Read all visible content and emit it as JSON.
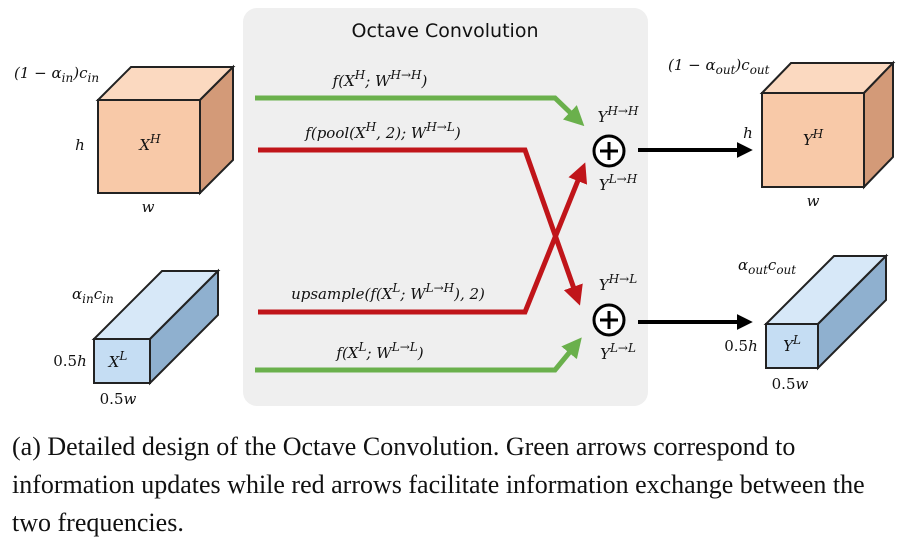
{
  "diagram": {
    "title": "Octave Convolution",
    "colors": {
      "green_arrow": "#6ab04c",
      "red_arrow": "#c0151a",
      "black_arrow": "#000000",
      "panel_bg": "#efefef",
      "high_freq_front": "#f8c9a8",
      "high_freq_top": "#fbd9c0",
      "high_freq_side": "#d39a78",
      "low_freq_front": "#c5ddf3",
      "low_freq_top": "#d7e8f8",
      "low_freq_side": "#8fb0cf"
    },
    "input_high": {
      "channels": "(1 − α_in)c_in",
      "tensor": "X^H",
      "height": "h",
      "width": "w"
    },
    "input_low": {
      "channels": "α_in c_in",
      "tensor": "X^L",
      "height": "0.5h",
      "width": "0.5w"
    },
    "output_high": {
      "channels": "(1 − α_out)c_out",
      "tensor": "Y^H",
      "height": "h",
      "width": "w"
    },
    "output_low": {
      "channels": "α_out c_out",
      "tensor": "Y^L",
      "height": "0.5h",
      "width": "0.5w"
    },
    "arrows": {
      "high_to_high": "f(X^H; W^{H→H})",
      "high_to_low": "f(pool(X^H, 2); W^{H→L})",
      "low_to_high": "upsample(f(X^L; W^{L→H}), 2)",
      "low_to_low": "f(X^L; W^{L→L})"
    },
    "sum_labels": {
      "y_hh": "Y^{H→H}",
      "y_lh": "Y^{L→H}",
      "y_hl": "Y^{H→L}",
      "y_ll": "Y^{L→L}"
    },
    "plus_symbol": "+"
  },
  "caption": "(a) Detailed design of the Octave Convolution. Green arrows correspond to information updates while red arrows facilitate information exchange between the two frequencies."
}
